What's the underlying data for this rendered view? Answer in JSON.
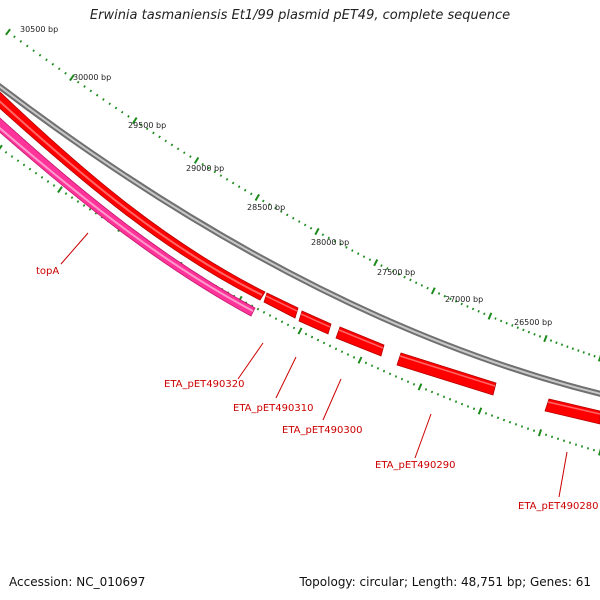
{
  "title": "Erwinia tasmaniensis Et1/99 plasmid pET49, complete sequence",
  "footer": {
    "accession": "Accession: NC_010697",
    "summary": "Topology: circular; Length: 48,751 bp; Genes: 61"
  },
  "bp_labels": [
    "30500 bp",
    "30000 bp",
    "29500 bp",
    "29000 bp",
    "28500 bp",
    "28000 bp",
    "27500 bp",
    "27000 bp",
    "26500 bp"
  ],
  "genes": [
    "topA",
    "ETA_pET490320",
    "ETA_pET490310",
    "ETA_pET490300",
    "ETA_pET490290",
    "ETA_pET490280"
  ],
  "colors": {
    "backbone": "#8c8c8c",
    "gene": "#ff0000",
    "gene_highlight": "#ff3399",
    "ticks": "#1a8a1a",
    "label": "#cc0000"
  }
}
